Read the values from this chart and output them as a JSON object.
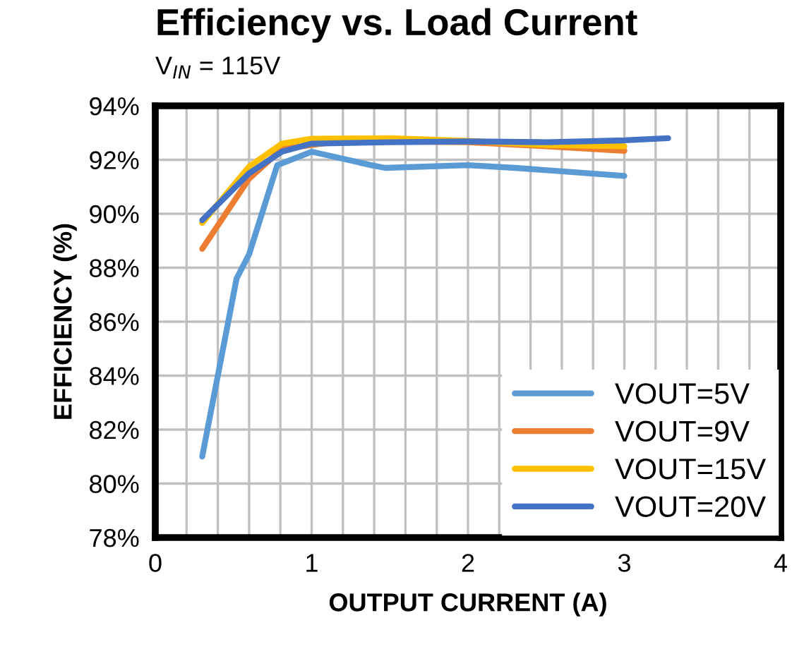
{
  "chart_data": {
    "type": "line",
    "title": "Efficiency vs. Load Current",
    "subtitle": "V$_{IN}$ = 115V",
    "xlabel": "OUTPUT CURRENT (A)",
    "ylabel": "EFFICIENCY (%)",
    "xlim": [
      0,
      4
    ],
    "xticks": [
      0,
      {
        "value": 0.2,
        "label": null
      },
      {
        "value": 0.4,
        "label": null
      },
      {
        "value": 0.6,
        "label": null
      },
      {
        "value": 0.8,
        "label": null
      },
      1,
      {
        "value": 1.2,
        "label": null
      },
      {
        "value": 1.4,
        "label": null
      },
      {
        "value": 1.6,
        "label": null
      },
      {
        "value": 1.8,
        "label": null
      },
      2,
      {
        "value": 2.2,
        "label": null
      },
      {
        "value": 2.4,
        "label": null
      },
      {
        "value": 2.6,
        "label": null
      },
      {
        "value": 2.8,
        "label": null
      },
      3,
      {
        "value": 3.2,
        "label": null
      },
      {
        "value": 3.4,
        "label": null
      },
      {
        "value": 3.6,
        "label": null
      },
      {
        "value": 3.8,
        "label": null
      },
      4
    ],
    "ylim": [
      78,
      94
    ],
    "yticks": [
      {
        "value": 78,
        "label": "78%"
      },
      {
        "value": 80,
        "label": "80%"
      },
      {
        "value": 82,
        "label": "82%"
      },
      {
        "value": 84,
        "label": "84%"
      },
      {
        "value": 86,
        "label": "86%"
      },
      {
        "value": 88,
        "label": "88%"
      },
      {
        "value": 90,
        "label": "90%"
      },
      {
        "value": 92,
        "label": "92%"
      },
      {
        "value": 94,
        "label": "94%"
      }
    ],
    "grid": true,
    "legend": "bottom right",
    "marker": "none",
    "line_style": "solid",
    "series": [
      {
        "name": "VOUT=5V",
        "color": "#5b9bd5",
        "x": [
          0.3,
          0.52,
          0.6,
          0.78,
          1.0,
          1.38,
          1.47,
          2.0,
          2.3,
          3.0
        ],
        "values": [
          81.0,
          87.6,
          88.5,
          91.8,
          92.3,
          91.8,
          91.7,
          91.8,
          91.7,
          91.4
        ]
      },
      {
        "name": "VOUT=9V",
        "color": "#ed7d31",
        "x": [
          0.3,
          0.6,
          0.81,
          1.2,
          2.0,
          2.5,
          3.0
        ],
        "values": [
          88.7,
          91.3,
          92.4,
          92.7,
          92.65,
          92.5,
          92.33
        ]
      },
      {
        "name": "VOUT=15V",
        "color": "#ffc000",
        "x": [
          0.3,
          0.6,
          0.81,
          1.0,
          1.5,
          2.0,
          2.5,
          3.0
        ],
        "values": [
          89.66,
          91.75,
          92.6,
          92.78,
          92.8,
          92.7,
          92.55,
          92.5
        ]
      },
      {
        "name": "VOUT=20V",
        "color": "#4472c4",
        "x": [
          0.3,
          0.6,
          0.81,
          1.0,
          1.5,
          2.0,
          2.5,
          3.0,
          3.28
        ],
        "values": [
          89.76,
          91.5,
          92.3,
          92.6,
          92.65,
          92.68,
          92.65,
          92.72,
          92.8
        ]
      }
    ]
  }
}
